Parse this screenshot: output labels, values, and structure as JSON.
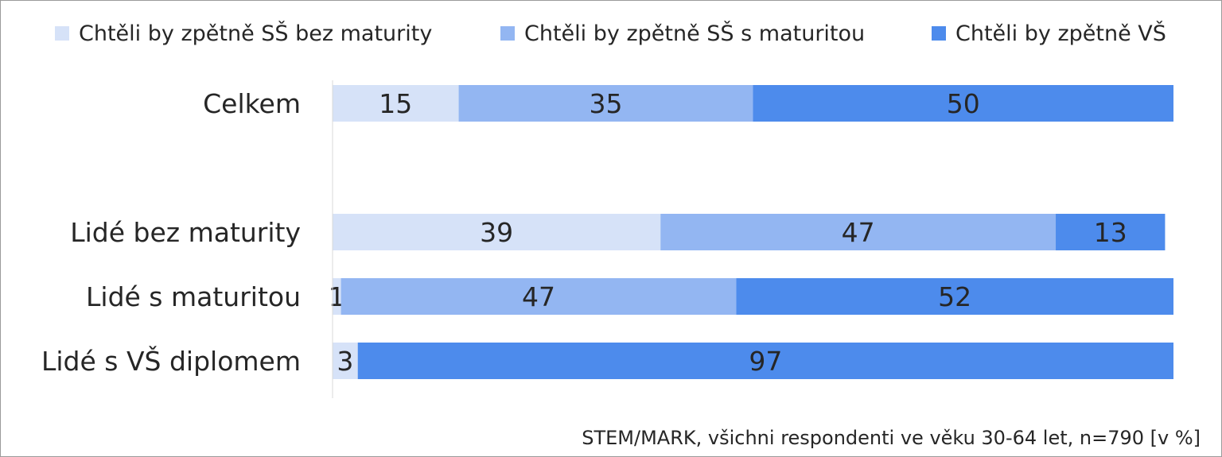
{
  "chart_data": {
    "type": "bar",
    "orientation": "horizontal",
    "stacked": true,
    "categories": [
      "Celkem",
      "Lidé bez maturity",
      "Lidé s maturitou",
      "Lidé s VŠ diplomem"
    ],
    "series": [
      {
        "name": "Chtěli by zpětně SŠ bez maturity",
        "values": [
          15,
          39,
          1,
          3
        ],
        "color": "#d6e2f8"
      },
      {
        "name": "Chtěli by zpětně SŠ s maturitou",
        "values": [
          35,
          47,
          47,
          0
        ],
        "color": "#93b6f2"
      },
      {
        "name": "Chtěli by zpětně VŠ",
        "values": [
          50,
          13,
          52,
          97
        ],
        "color": "#4d8bec"
      }
    ],
    "xlim": [
      0,
      100
    ],
    "legend_position": "top",
    "grid": false,
    "source_note": "STEM/MARK, všichni respondenti ve věku 30-64 let, n=790 [v %]"
  }
}
